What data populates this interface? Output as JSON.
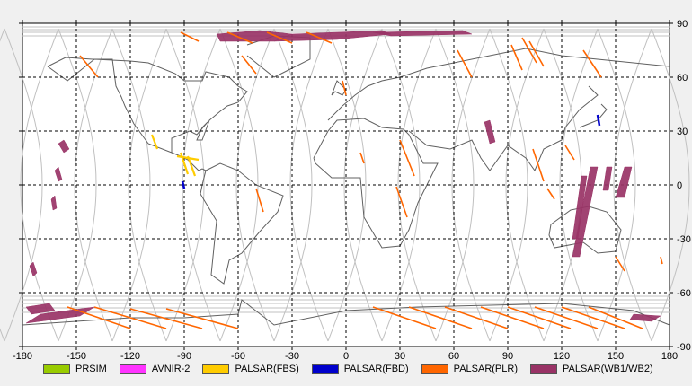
{
  "chart_data": {
    "type": "map",
    "projection": "equirectangular",
    "xlim": [
      -180,
      180
    ],
    "ylim": [
      -90,
      90
    ],
    "x_ticks": [
      -180,
      -150,
      -120,
      -90,
      -60,
      -30,
      0,
      30,
      60,
      90,
      120,
      150,
      180
    ],
    "y_ticks": [
      90,
      60,
      30,
      0,
      -30,
      -60,
      -90
    ],
    "x_tick_labels": [
      "-180",
      "-150",
      "-120",
      "-90",
      "-60",
      "-30",
      "0",
      "30",
      "60",
      "90",
      "120",
      "150",
      "180"
    ],
    "y_tick_labels": [
      "90",
      "60",
      "30",
      "0",
      "-30",
      "-60",
      "-90"
    ],
    "grid": true,
    "legend": [
      {
        "name": "PRSIM",
        "color": "#99cc00"
      },
      {
        "name": "AVNIR-2",
        "color": "#ff33ff"
      },
      {
        "name": "PALSAR(FBS)",
        "color": "#ffcc00"
      },
      {
        "name": "PALSAR(FBD)",
        "color": "#0000cc"
      },
      {
        "name": "PALSAR(PLR)",
        "color": "#ff6600"
      },
      {
        "name": "PALSAR(WB1/WB2)",
        "color": "#993366"
      }
    ],
    "wb_swaths": [
      {
        "lon": [
          -70,
          -40,
          -30,
          -48,
          -72
        ],
        "lat": [
          80,
          80,
          84,
          86,
          84
        ]
      },
      {
        "lon": [
          -40,
          -5,
          25,
          20,
          -30
        ],
        "lat": [
          80,
          81,
          84,
          86,
          84
        ]
      },
      {
        "lon": [
          25,
          70,
          65,
          15
        ],
        "lat": [
          83,
          84,
          86,
          85
        ]
      },
      {
        "lon": [
          -178,
          -165,
          -162,
          -175
        ],
        "lat": [
          -68,
          -66,
          -70,
          -72
        ]
      },
      {
        "lon": [
          -170,
          -140,
          -148,
          -178
        ],
        "lat": [
          -72,
          -68,
          -73,
          -77
        ]
      },
      {
        "lon": [
          -160,
          -157,
          -154,
          -157
        ],
        "lat": [
          23,
          25,
          20,
          18
        ]
      },
      {
        "lon": [
          -162,
          -160,
          -158,
          -160
        ],
        "lat": [
          8,
          10,
          3,
          2
        ]
      },
      {
        "lon": [
          -164,
          -162,
          -161,
          -163
        ],
        "lat": [
          -8,
          -6,
          -13,
          -14
        ]
      },
      {
        "lon": [
          -176,
          -174,
          -172,
          -174
        ],
        "lat": [
          -45,
          -43,
          -49,
          -51
        ]
      },
      {
        "lon": [
          77,
          80,
          83,
          80
        ],
        "lat": [
          35,
          36,
          24,
          23
        ]
      },
      {
        "lon": [
          136,
          140,
          130,
          126
        ],
        "lat": [
          10,
          10,
          -40,
          -40
        ]
      },
      {
        "lon": [
          131,
          134,
          129,
          126
        ],
        "lat": [
          5,
          5,
          -30,
          -30
        ]
      },
      {
        "lon": [
          145,
          148,
          146,
          143
        ],
        "lat": [
          10,
          10,
          -3,
          -3
        ]
      },
      {
        "lon": [
          155,
          159,
          155,
          150
        ],
        "lat": [
          10,
          10,
          -7,
          -7
        ]
      },
      {
        "lon": [
          160,
          175,
          170,
          158
        ],
        "lat": [
          -72,
          -73,
          -76,
          -75
        ]
      }
    ],
    "plr_tracks": [
      {
        "lon": [
          -148,
          -138
        ],
        "lat": [
          72,
          60
        ]
      },
      {
        "lon": [
          -92,
          -82
        ],
        "lat": [
          85,
          80
        ]
      },
      {
        "lon": [
          -66,
          -52
        ],
        "lat": [
          85,
          79
        ]
      },
      {
        "lon": [
          -44,
          -30
        ],
        "lat": [
          85,
          79
        ]
      },
      {
        "lon": [
          -22,
          -8
        ],
        "lat": [
          85,
          79
        ]
      },
      {
        "lon": [
          -58,
          -50
        ],
        "lat": [
          72,
          62
        ]
      },
      {
        "lon": [
          -50,
          -46
        ],
        "lat": [
          -2,
          -15
        ]
      },
      {
        "lon": [
          -2,
          0
        ],
        "lat": [
          58,
          50
        ]
      },
      {
        "lon": [
          8,
          10
        ],
        "lat": [
          18,
          12
        ]
      },
      {
        "lon": [
          28,
          34
        ],
        "lat": [
          -1,
          -18
        ]
      },
      {
        "lon": [
          30,
          38
        ],
        "lat": [
          25,
          5
        ]
      },
      {
        "lon": [
          62,
          70
        ],
        "lat": [
          75,
          60
        ]
      },
      {
        "lon": [
          98,
          106
        ],
        "lat": [
          82,
          68
        ]
      },
      {
        "lon": [
          92,
          98
        ],
        "lat": [
          78,
          64
        ]
      },
      {
        "lon": [
          132,
          142
        ],
        "lat": [
          75,
          60
        ]
      },
      {
        "lon": [
          102,
          110
        ],
        "lat": [
          80,
          66
        ]
      },
      {
        "lon": [
          104,
          110
        ],
        "lat": [
          20,
          2
        ]
      },
      {
        "lon": [
          122,
          127
        ],
        "lat": [
          22,
          14
        ]
      },
      {
        "lon": [
          150,
          155
        ],
        "lat": [
          -40,
          -48
        ]
      },
      {
        "lon": [
          112,
          116
        ],
        "lat": [
          -2,
          -8
        ]
      },
      {
        "lon": [
          175,
          176
        ],
        "lat": [
          -40,
          -44
        ]
      },
      {
        "lon": [
          -155,
          -120
        ],
        "lat": [
          -68,
          -80
        ]
      },
      {
        "lon": [
          -140,
          -100
        ],
        "lat": [
          -68,
          -80
        ]
      },
      {
        "lon": [
          -120,
          -80
        ],
        "lat": [
          -69,
          -80
        ]
      },
      {
        "lon": [
          -100,
          -60
        ],
        "lat": [
          -69,
          -80
        ]
      },
      {
        "lon": [
          15,
          50
        ],
        "lat": [
          -68,
          -80
        ]
      },
      {
        "lon": [
          35,
          70
        ],
        "lat": [
          -68,
          -80
        ]
      },
      {
        "lon": [
          55,
          90
        ],
        "lat": [
          -68,
          -80
        ]
      },
      {
        "lon": [
          75,
          110
        ],
        "lat": [
          -68,
          -80
        ]
      },
      {
        "lon": [
          90,
          125
        ],
        "lat": [
          -68,
          -80
        ]
      },
      {
        "lon": [
          105,
          140
        ],
        "lat": [
          -68,
          -80
        ]
      },
      {
        "lon": [
          120,
          155
        ],
        "lat": [
          -68,
          -80
        ]
      },
      {
        "lon": [
          135,
          165
        ],
        "lat": [
          -68,
          -80
        ]
      }
    ],
    "fbs_tracks": [
      {
        "lon": [
          -108,
          -105
        ],
        "lat": [
          28,
          20
        ]
      },
      {
        "lon": [
          -92,
          -88
        ],
        "lat": [
          18,
          6
        ]
      },
      {
        "lon": [
          -88,
          -84
        ],
        "lat": [
          16,
          5
        ]
      },
      {
        "lon": [
          -94,
          -82
        ],
        "lat": [
          16,
          14
        ]
      }
    ],
    "fbd_tracks": [
      {
        "lon": [
          -91,
          -90
        ],
        "lat": [
          2,
          -2
        ]
      },
      {
        "lon": [
          140,
          141
        ],
        "lat": [
          39,
          33
        ]
      }
    ],
    "land_outlines": [
      {
        "lon": [
          -166,
          -156,
          -141,
          -130,
          -128,
          -125,
          -123,
          -118,
          -110,
          -97,
          -97,
          -87,
          -83,
          -77,
          -80,
          -83,
          -80,
          -76,
          -70,
          -66,
          -60,
          -55,
          -60,
          -65,
          -78,
          -80,
          -90,
          -95,
          -110,
          -120,
          -140,
          -155,
          -166
        ],
        "lat": [
          66,
          71,
          70,
          70,
          55,
          49,
          44,
          34,
          23,
          18,
          26,
          30,
          28,
          35,
          32,
          25,
          25,
          36,
          41,
          44,
          46,
          52,
          55,
          60,
          63,
          58,
          58,
          62,
          68,
          69,
          70,
          58,
          66
        ]
      },
      {
        "lon": [
          -97,
          -92,
          -88,
          -86,
          -84,
          -82,
          -80,
          -78
        ],
        "lat": [
          18,
          16,
          14,
          12,
          10,
          8,
          9,
          8
        ]
      },
      {
        "lon": [
          -78,
          -70,
          -60,
          -50,
          -35,
          -38,
          -48,
          -58,
          -65,
          -68,
          -75,
          -72,
          -81,
          -80,
          -78
        ],
        "lat": [
          8,
          12,
          8,
          0,
          -6,
          -15,
          -26,
          -38,
          -42,
          -55,
          -50,
          -20,
          -5,
          0,
          8
        ]
      },
      {
        "lon": [
          -10,
          -2,
          5,
          12,
          20,
          30,
          45,
          60,
          80,
          100,
          120,
          140,
          160,
          180
        ],
        "lat": [
          36,
          44,
          50,
          55,
          58,
          60,
          65,
          68,
          72,
          76,
          72,
          70,
          68,
          66
        ]
      },
      {
        "lon": [
          -18,
          -10,
          -5,
          10,
          20,
          32,
          35,
          43,
          51,
          40,
          35,
          30,
          20,
          10,
          8,
          -8,
          -17,
          -18
        ],
        "lat": [
          15,
          30,
          36,
          37,
          32,
          31,
          28,
          12,
          12,
          -10,
          -25,
          -34,
          -35,
          -18,
          4,
          4,
          12,
          15
        ]
      },
      {
        "lon": [
          35,
          45,
          58,
          70,
          75,
          80,
          90,
          100,
          105,
          110,
          120,
          122,
          130,
          140,
          135
        ],
        "lat": [
          30,
          22,
          20,
          25,
          15,
          8,
          22,
          15,
          8,
          20,
          25,
          32,
          42,
          50,
          55
        ]
      },
      {
        "lon": [
          114,
          125,
          135,
          145,
          153,
          150,
          140,
          132,
          116,
          113,
          114
        ],
        "lat": [
          -22,
          -14,
          -12,
          -15,
          -25,
          -37,
          -38,
          -32,
          -35,
          -28,
          -22
        ]
      },
      {
        "lon": [
          -55,
          -40,
          -20,
          -20,
          -40,
          -55
        ],
        "lat": [
          78,
          83,
          82,
          70,
          60,
          72
        ]
      },
      {
        "lon": [
          -180,
          -150,
          -120,
          -90,
          -60,
          -58,
          -40,
          0,
          40,
          80,
          120,
          160,
          180
        ],
        "lat": [
          -78,
          -76,
          -74,
          -74,
          -72,
          -64,
          -78,
          -70,
          -68,
          -67,
          -66,
          -70,
          -78
        ]
      },
      {
        "lon": [
          130,
          135,
          140,
          145,
          142
        ],
        "lat": [
          32,
          34,
          36,
          42,
          45
        ]
      },
      {
        "lon": [
          -8,
          -5,
          0,
          -2,
          -6,
          -8
        ],
        "lat": [
          50,
          58,
          53,
          50,
          52,
          50
        ]
      }
    ]
  }
}
